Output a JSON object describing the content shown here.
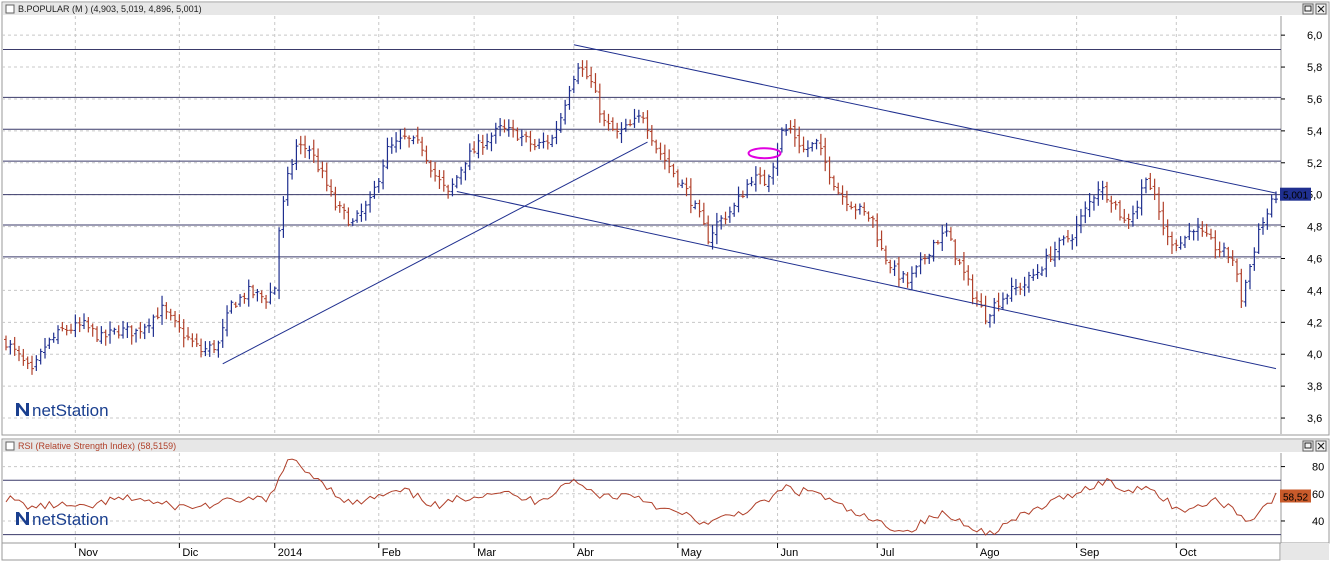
{
  "price_panel": {
    "title": "B.POPULAR (M ) (4,903, 5,019, 4,896, 5,001)",
    "last_value_label": "5,001",
    "logo_text": "netStation",
    "button_icons": [
      "minimize-icon",
      "close-icon"
    ]
  },
  "rsi_panel": {
    "title": "RSI (Relative Strength Index) (58,5159)",
    "last_value_label": "58,52",
    "logo_text": "netStation",
    "button_icons": [
      "minimize-icon",
      "close-icon"
    ]
  },
  "colors": {
    "up_bar": "#1f2f8f",
    "down_bar": "#b0402a",
    "trendline": "#1f2f8f",
    "grid": "#c8c8c8",
    "rsi_line": "#b0402a",
    "accent_ellipse": "#e000e0",
    "last_value_bg": "#1f2f8f",
    "rsi_value_bg": "#c85a2a"
  },
  "chart_data": [
    {
      "type": "ohlc",
      "y_ticks": [
        "6,0",
        "5,8",
        "5,6",
        "5,4",
        "5,2",
        "5,0",
        "4,8",
        "4,6",
        "4,4",
        "4,2",
        "4,0",
        "3,8",
        "3,6"
      ],
      "ylim": [
        3.5,
        6.12
      ],
      "x_labels": [
        "Nov",
        "Dic",
        "2014",
        "Feb",
        "Mar",
        "Abr",
        "May",
        "Jun",
        "Jul",
        "Ago",
        "Sep",
        "Oct"
      ],
      "x_label_index": [
        16,
        40,
        62,
        86,
        108,
        131,
        155,
        178,
        201,
        224,
        247,
        270
      ],
      "n_bars": 294,
      "horizontal_levels": [
        5.91,
        5.61,
        5.41,
        5.21,
        5.0,
        4.81,
        4.61
      ],
      "trendlines": [
        {
          "from": [
            50,
            3.94
          ],
          "to": [
            148,
            5.33
          ]
        },
        {
          "from": [
            131,
            5.94
          ],
          "to": [
            293,
            5.01
          ]
        },
        {
          "from": [
            104,
            5.02
          ],
          "to": [
            293,
            3.91
          ]
        }
      ],
      "ellipse": {
        "center": [
          175,
          5.26
        ],
        "value": 5.26
      },
      "waypoints": [
        [
          0,
          4.08
        ],
        [
          6,
          3.88
        ],
        [
          9,
          4.05
        ],
        [
          13,
          4.15
        ],
        [
          18,
          4.18
        ],
        [
          22,
          4.1
        ],
        [
          26,
          4.15
        ],
        [
          30,
          4.14
        ],
        [
          36,
          4.28
        ],
        [
          40,
          4.15
        ],
        [
          45,
          4.02
        ],
        [
          49,
          4.06
        ],
        [
          52,
          4.31
        ],
        [
          56,
          4.39
        ],
        [
          60,
          4.35
        ],
        [
          62,
          4.42
        ],
        [
          63,
          4.78
        ],
        [
          65,
          5.1
        ],
        [
          67,
          5.3
        ],
        [
          70,
          5.29
        ],
        [
          73,
          5.12
        ],
        [
          76,
          4.93
        ],
        [
          80,
          4.82
        ],
        [
          84,
          4.95
        ],
        [
          88,
          5.28
        ],
        [
          92,
          5.35
        ],
        [
          96,
          5.3
        ],
        [
          99,
          5.12
        ],
        [
          102,
          5.0
        ],
        [
          106,
          5.22
        ],
        [
          110,
          5.33
        ],
        [
          114,
          5.41
        ],
        [
          118,
          5.38
        ],
        [
          122,
          5.3
        ],
        [
          126,
          5.35
        ],
        [
          128,
          5.49
        ],
        [
          130,
          5.68
        ],
        [
          132,
          5.82
        ],
        [
          135,
          5.7
        ],
        [
          138,
          5.45
        ],
        [
          141,
          5.38
        ],
        [
          144,
          5.43
        ],
        [
          147,
          5.5
        ],
        [
          150,
          5.3
        ],
        [
          153,
          5.18
        ],
        [
          157,
          5.02
        ],
        [
          160,
          4.86
        ],
        [
          162,
          4.73
        ],
        [
          164,
          4.82
        ],
        [
          168,
          4.92
        ],
        [
          172,
          5.11
        ],
        [
          175,
          5.08
        ],
        [
          177,
          5.2
        ],
        [
          179,
          5.39
        ],
        [
          181,
          5.41
        ],
        [
          184,
          5.28
        ],
        [
          187,
          5.32
        ],
        [
          189,
          5.2
        ],
        [
          192,
          5.02
        ],
        [
          196,
          4.92
        ],
        [
          200,
          4.84
        ],
        [
          202,
          4.65
        ],
        [
          205,
          4.52
        ],
        [
          208,
          4.45
        ],
        [
          211,
          4.56
        ],
        [
          214,
          4.7
        ],
        [
          217,
          4.76
        ],
        [
          220,
          4.56
        ],
        [
          223,
          4.38
        ],
        [
          226,
          4.24
        ],
        [
          228,
          4.31
        ],
        [
          231,
          4.38
        ],
        [
          235,
          4.44
        ],
        [
          238,
          4.52
        ],
        [
          242,
          4.66
        ],
        [
          246,
          4.75
        ],
        [
          249,
          4.9
        ],
        [
          252,
          5.05
        ],
        [
          255,
          4.98
        ],
        [
          258,
          4.83
        ],
        [
          261,
          4.93
        ],
        [
          263,
          5.13
        ],
        [
          265,
          4.97
        ],
        [
          268,
          4.72
        ],
        [
          271,
          4.7
        ],
        [
          274,
          4.8
        ],
        [
          277,
          4.72
        ],
        [
          280,
          4.65
        ],
        [
          283,
          4.6
        ],
        [
          285,
          4.35
        ],
        [
          287,
          4.55
        ],
        [
          289,
          4.78
        ],
        [
          291,
          4.88
        ],
        [
          293,
          5.0
        ]
      ]
    },
    {
      "type": "line",
      "series": [
        {
          "name": "RSI",
          "waypoints": [
            [
              0,
              57
            ],
            [
              6,
              50
            ],
            [
              12,
              52
            ],
            [
              18,
              49
            ],
            [
              24,
              55
            ],
            [
              30,
              57
            ],
            [
              36,
              52
            ],
            [
              42,
              50
            ],
            [
              48,
              52
            ],
            [
              54,
              56
            ],
            [
              60,
              55
            ],
            [
              62,
              62
            ],
            [
              64,
              80
            ],
            [
              66,
              86
            ],
            [
              68,
              78
            ],
            [
              72,
              72
            ],
            [
              76,
              60
            ],
            [
              80,
              52
            ],
            [
              86,
              58
            ],
            [
              92,
              62
            ],
            [
              96,
              56
            ],
            [
              100,
              50
            ],
            [
              104,
              56
            ],
            [
              110,
              60
            ],
            [
              114,
              62
            ],
            [
              118,
              57
            ],
            [
              122,
              55
            ],
            [
              126,
              60
            ],
            [
              130,
              70
            ],
            [
              132,
              67
            ],
            [
              136,
              60
            ],
            [
              140,
              58
            ],
            [
              144,
              60
            ],
            [
              148,
              55
            ],
            [
              152,
              48
            ],
            [
              156,
              45
            ],
            [
              160,
              40
            ],
            [
              162,
              37
            ],
            [
              166,
              43
            ],
            [
              170,
              47
            ],
            [
              174,
              52
            ],
            [
              178,
              60
            ],
            [
              180,
              65
            ],
            [
              183,
              61
            ],
            [
              186,
              63
            ],
            [
              190,
              55
            ],
            [
              196,
              45
            ],
            [
              200,
              40
            ],
            [
              204,
              36
            ],
            [
              208,
              32
            ],
            [
              212,
              40
            ],
            [
              216,
              45
            ],
            [
              220,
              40
            ],
            [
              224,
              35
            ],
            [
              226,
              30
            ],
            [
              228,
              33
            ],
            [
              234,
              43
            ],
            [
              240,
              52
            ],
            [
              246,
              60
            ],
            [
              250,
              65
            ],
            [
              254,
              70
            ],
            [
              256,
              65
            ],
            [
              260,
              62
            ],
            [
              263,
              68
            ],
            [
              266,
              58
            ],
            [
              270,
              50
            ],
            [
              274,
              48
            ],
            [
              278,
              55
            ],
            [
              282,
              52
            ],
            [
              286,
              40
            ],
            [
              288,
              44
            ],
            [
              290,
              50
            ],
            [
              293,
              58
            ]
          ]
        }
      ],
      "y_ticks": [
        "80",
        "60",
        "40"
      ],
      "ylim": [
        26,
        90
      ],
      "guide_levels": [
        70,
        30
      ]
    }
  ]
}
